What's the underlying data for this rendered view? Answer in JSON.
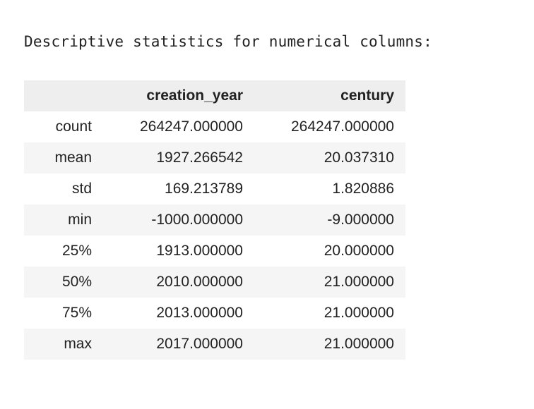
{
  "output": {
    "heading": "Descriptive statistics for numerical columns:"
  },
  "table": {
    "columns": [
      "",
      "creation_year",
      "century"
    ],
    "rows": [
      {
        "label": "count",
        "creation_year": "264247.000000",
        "century": "264247.000000"
      },
      {
        "label": "mean",
        "creation_year": "1927.266542",
        "century": "20.037310"
      },
      {
        "label": "std",
        "creation_year": "169.213789",
        "century": "1.820886"
      },
      {
        "label": "min",
        "creation_year": "-1000.000000",
        "century": "-9.000000"
      },
      {
        "label": "25%",
        "creation_year": "1913.000000",
        "century": "20.000000"
      },
      {
        "label": "50%",
        "creation_year": "2010.000000",
        "century": "21.000000"
      },
      {
        "label": "75%",
        "creation_year": "2013.000000",
        "century": "21.000000"
      },
      {
        "label": "max",
        "creation_year": "2017.000000",
        "century": "21.000000"
      }
    ]
  }
}
